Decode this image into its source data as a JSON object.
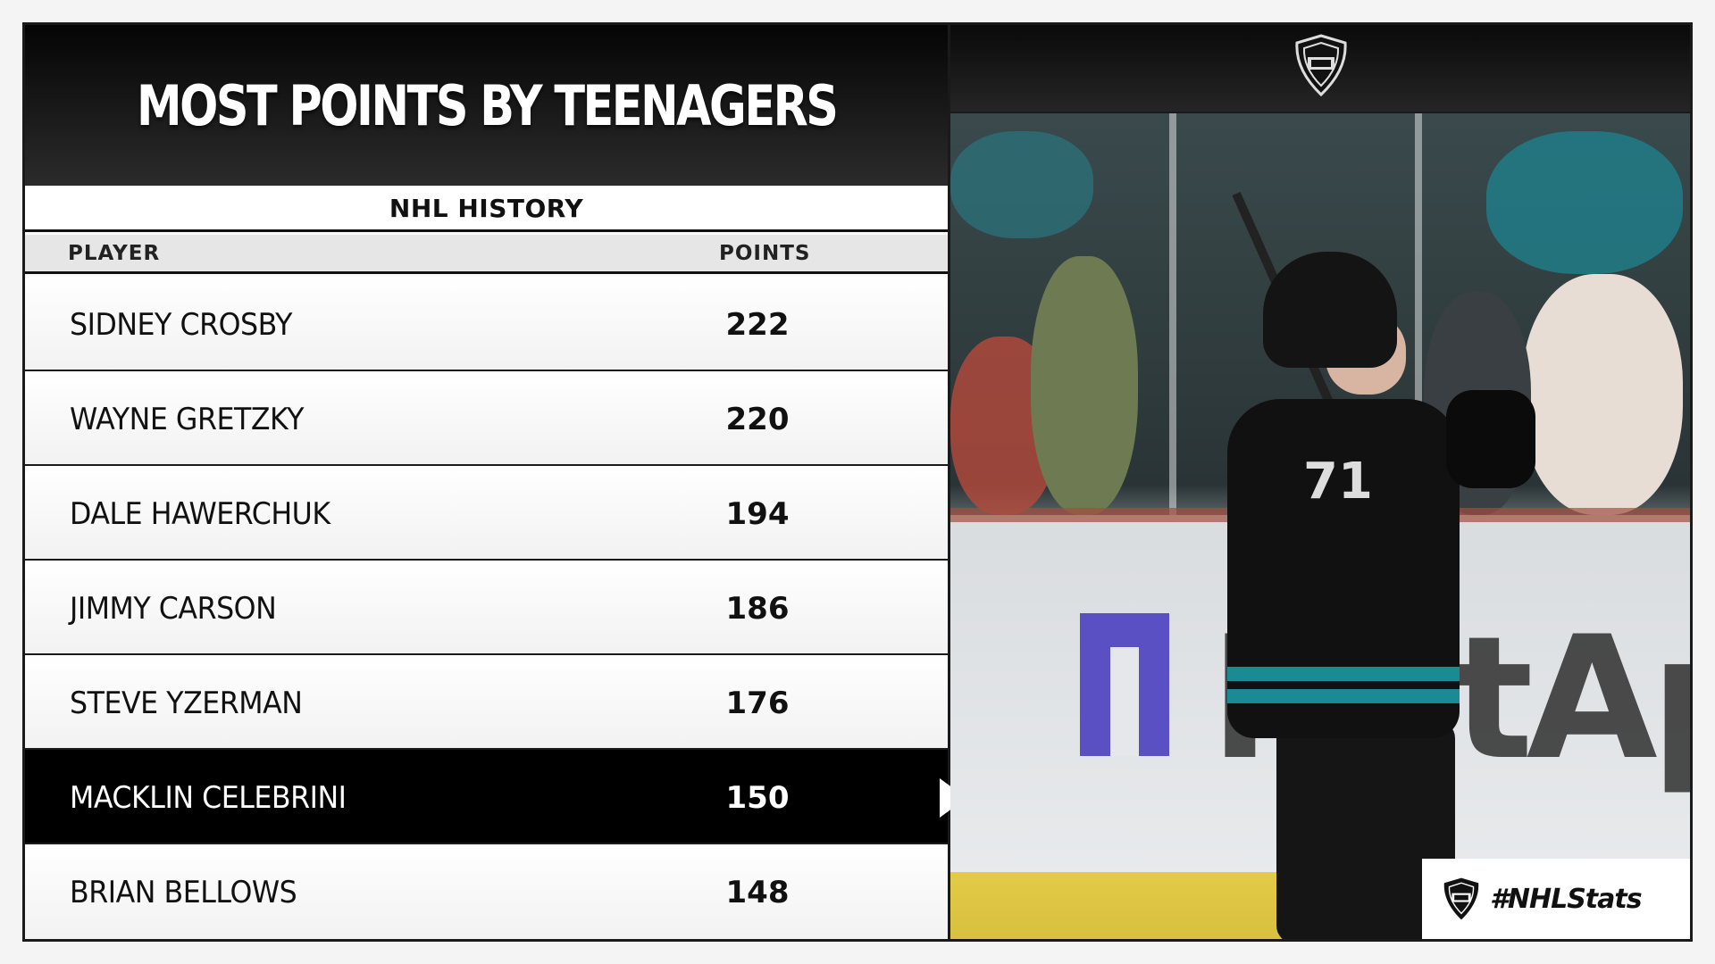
{
  "header": {
    "title": "MOST POINTS BY TEENAGERS",
    "subtitle": "NHL HISTORY"
  },
  "table": {
    "columns": [
      "PLAYER",
      "POINTS"
    ],
    "rows": [
      {
        "player": "SIDNEY CROSBY",
        "points": "222"
      },
      {
        "player": "WAYNE GRETZKY",
        "points": "220"
      },
      {
        "player": "DALE HAWERCHUK",
        "points": "194"
      },
      {
        "player": "JIMMY CARSON",
        "points": "186"
      },
      {
        "player": "STEVE YZERMAN",
        "points": "176"
      },
      {
        "player": "MACKLIN CELEBRINI",
        "points": "150"
      },
      {
        "player": "BRIAN BELLOWS",
        "points": "148"
      }
    ],
    "highlighted_row": "MACKLIN CELEBRINI"
  },
  "photo": {
    "jersey_number": "71",
    "board_text": "NetApp"
  },
  "branding": {
    "logo_icon": "nhl-shield-icon",
    "hashtag": "#NHLStats"
  },
  "colors": {
    "highlight_row": "#000000",
    "teal_accent": "#1a8a95",
    "netapp_purple": "#5b4fc4"
  }
}
